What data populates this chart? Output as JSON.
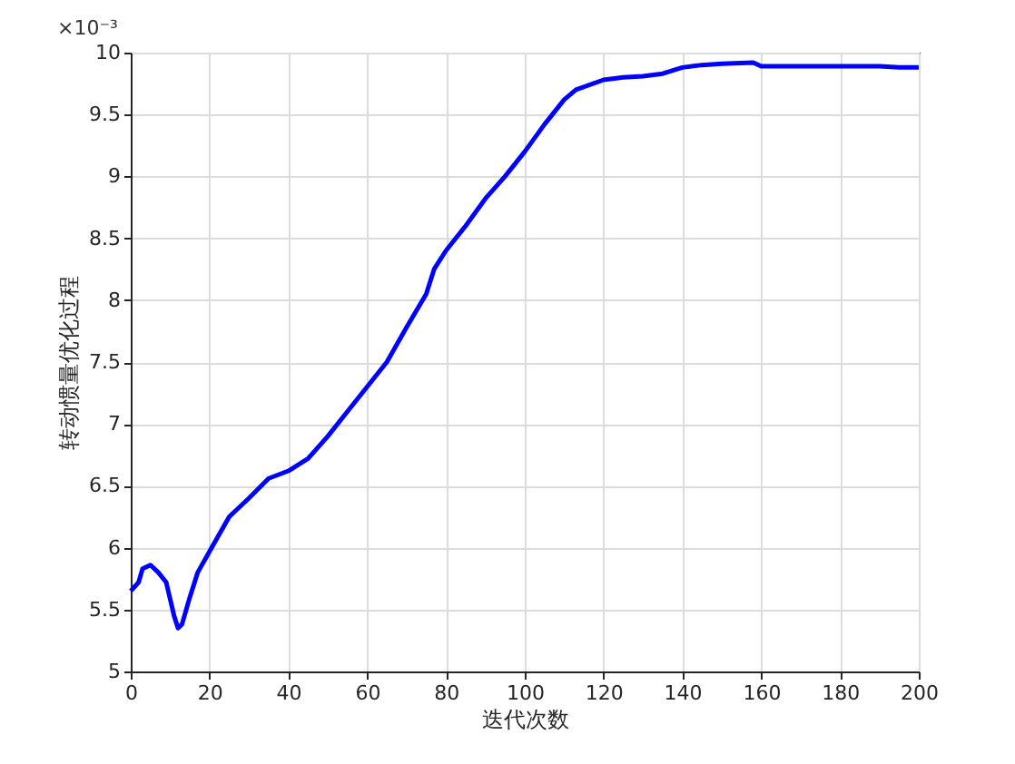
{
  "chart_data": {
    "type": "line",
    "xlabel": "迭代次数",
    "ylabel": "转动惯量优化过程",
    "annotations": [
      "×10⁻³"
    ],
    "x": [
      0,
      2,
      3,
      5,
      7,
      9,
      11,
      12,
      13,
      15,
      17,
      20,
      25,
      30,
      35,
      40,
      45,
      50,
      55,
      60,
      65,
      70,
      75,
      77,
      80,
      85,
      90,
      95,
      100,
      105,
      110,
      113,
      120,
      125,
      130,
      135,
      140,
      145,
      150,
      158,
      160,
      170,
      180,
      190,
      195,
      200
    ],
    "series": [
      {
        "color": "#0000ff",
        "values": [
          5.65,
          5.72,
          5.83,
          5.86,
          5.8,
          5.72,
          5.45,
          5.35,
          5.38,
          5.6,
          5.8,
          5.97,
          6.25,
          6.4,
          6.56,
          6.62,
          6.72,
          6.9,
          7.1,
          7.3,
          7.5,
          7.78,
          8.05,
          8.25,
          8.4,
          8.6,
          8.82,
          9.0,
          9.2,
          9.42,
          9.62,
          9.7,
          9.78,
          9.8,
          9.81,
          9.83,
          9.88,
          9.9,
          9.91,
          9.92,
          9.89,
          9.89,
          9.89,
          9.89,
          9.88,
          9.88
        ]
      }
    ],
    "xlim": [
      0,
      200
    ],
    "xticks": [
      0,
      20,
      40,
      60,
      80,
      100,
      120,
      140,
      160,
      180,
      200
    ],
    "ylim": [
      5,
      10
    ],
    "yticks": [
      5,
      5.5,
      6,
      6.5,
      7,
      7.5,
      8,
      8.5,
      9,
      9.5,
      10
    ],
    "grid": true,
    "line_style": "solid",
    "marker": "none"
  }
}
